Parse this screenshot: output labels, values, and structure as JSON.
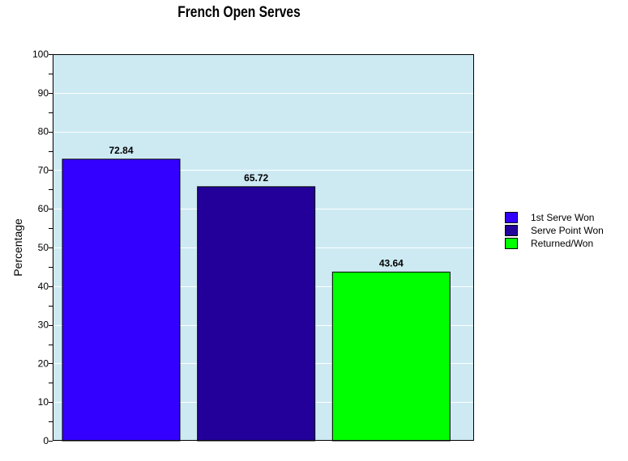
{
  "chart_data": {
    "type": "bar",
    "title": "French Open Serves",
    "xlabel": "",
    "ylabel": "Percentage",
    "ylim": [
      0,
      100
    ],
    "yticks": [
      0,
      10,
      20,
      30,
      40,
      50,
      60,
      70,
      80,
      90,
      100
    ],
    "grid": true,
    "legend_position": "right",
    "background_color": "#cdeaf3",
    "categories": [
      "1st Serve Won",
      "Serve Point Won",
      "Returned/Won"
    ],
    "values": [
      72.84,
      65.72,
      43.64
    ],
    "colors": [
      "#3300ff",
      "#220099",
      "#00ff00"
    ],
    "data_labels": [
      "72.84",
      "65.72",
      "43.64"
    ]
  }
}
